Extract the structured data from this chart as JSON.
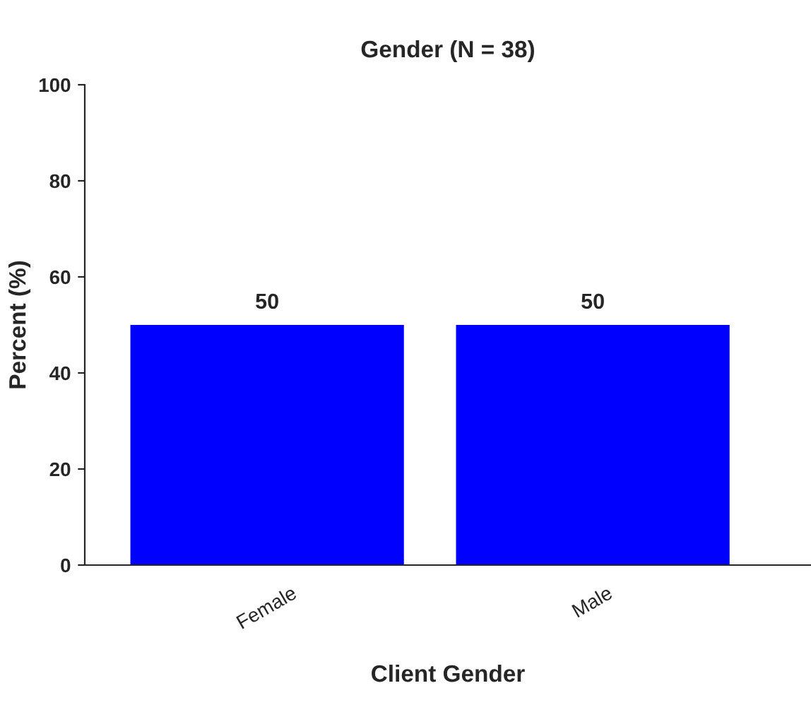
{
  "chart_data": {
    "type": "bar",
    "title": "Gender (N = 38)",
    "xlabel": "Client Gender",
    "ylabel": "Percent (%)",
    "categories": [
      "Female",
      "Male"
    ],
    "values": [
      50,
      50
    ],
    "color": "#0000ff",
    "ylim": [
      0,
      100
    ],
    "yticks": [
      0,
      20,
      40,
      60,
      80,
      100
    ],
    "data_labels": true,
    "grid": false,
    "legend": false
  }
}
